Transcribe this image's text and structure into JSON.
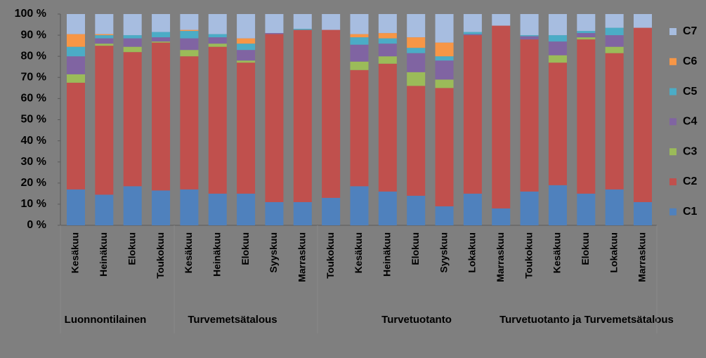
{
  "chart_data": {
    "type": "stacked_bar_100",
    "categories": [
      "Kesäkuu",
      "Heinäkuu",
      "Elokuu",
      "Toukokuu",
      "Kesäkuu",
      "Heinäkuu",
      "Elokuu",
      "Syyskuu",
      "Marraskuu",
      "Toukokuu",
      "Kesäkuu",
      "Heinäkuu",
      "Elokuu",
      "Syyskuu",
      "Lokakuu",
      "Marraskuu",
      "Toukokuu",
      "Kesäkuu",
      "Elokuu",
      "Lokakuu",
      "Marraskuu"
    ],
    "groups": [
      "Luonnontilainen",
      "Turvemetsätalous",
      "Turvetuotanto",
      "Turvetuotanto ja Turvemetsätalous"
    ],
    "series": [
      {
        "name": "C1",
        "color": "#4f81bd",
        "values": [
          17,
          14.5,
          18.5,
          16.5,
          17,
          15,
          15,
          11,
          11,
          13,
          18.5,
          16,
          14,
          9,
          15,
          8,
          16,
          19,
          15,
          17,
          11
        ]
      },
      {
        "name": "C2",
        "color": "#c0504d",
        "values": [
          50.5,
          70.5,
          63.5,
          70,
          63,
          69.5,
          62,
          79.5,
          81.5,
          79.5,
          55,
          60.5,
          52,
          56,
          75,
          86.5,
          72,
          58,
          73,
          64.5,
          82.5
        ]
      },
      {
        "name": "C3",
        "color": "#9bbb59",
        "values": [
          4,
          1,
          2.5,
          0.5,
          3,
          1.5,
          1,
          0,
          0,
          0,
          4,
          3.5,
          6.5,
          4,
          0,
          0,
          0,
          3.5,
          1,
          3,
          0
        ]
      },
      {
        "name": "C4",
        "color": "#8064a2",
        "values": [
          8.5,
          2.5,
          4,
          2,
          5.5,
          3,
          5,
          0.5,
          0,
          0,
          8,
          6,
          9,
          9,
          0.5,
          0,
          1.5,
          6.5,
          2,
          5.5,
          0
        ]
      },
      {
        "name": "C5",
        "color": "#4bacc6",
        "values": [
          4.5,
          1.5,
          1.5,
          2.5,
          3.5,
          1.5,
          3,
          0,
          0.5,
          0,
          3.5,
          2.5,
          2.5,
          2,
          1,
          0,
          0.5,
          3,
          1,
          3.5,
          0
        ]
      },
      {
        "name": "C6",
        "color": "#f79646",
        "values": [
          6,
          0.5,
          0,
          0,
          0.5,
          0,
          2.5,
          0,
          0,
          0,
          1.5,
          2.5,
          5,
          6.5,
          0,
          0,
          0,
          0,
          0,
          0,
          0
        ]
      },
      {
        "name": "C7",
        "color": "#a7bde0",
        "values": [
          9.5,
          9.5,
          10,
          8.5,
          7.5,
          9.5,
          11.5,
          9,
          7,
          7.5,
          9.5,
          9,
          11,
          13.5,
          8.5,
          5.5,
          10,
          10,
          8,
          6.5,
          6.5
        ]
      }
    ],
    "ylim": [
      0,
      100
    ],
    "yticks": [
      {
        "value": 0,
        "label": "0 %"
      },
      {
        "value": 10,
        "label": "10 %"
      },
      {
        "value": 20,
        "label": "20 %"
      },
      {
        "value": 30,
        "label": "30 %"
      },
      {
        "value": 40,
        "label": "40 %"
      },
      {
        "value": 50,
        "label": "50 %"
      },
      {
        "value": 60,
        "label": "60 %"
      },
      {
        "value": 70,
        "label": "70 %"
      },
      {
        "value": 80,
        "label": "80 %"
      },
      {
        "value": 90,
        "label": "90 %"
      },
      {
        "value": 100,
        "label": "100 %"
      }
    ]
  }
}
